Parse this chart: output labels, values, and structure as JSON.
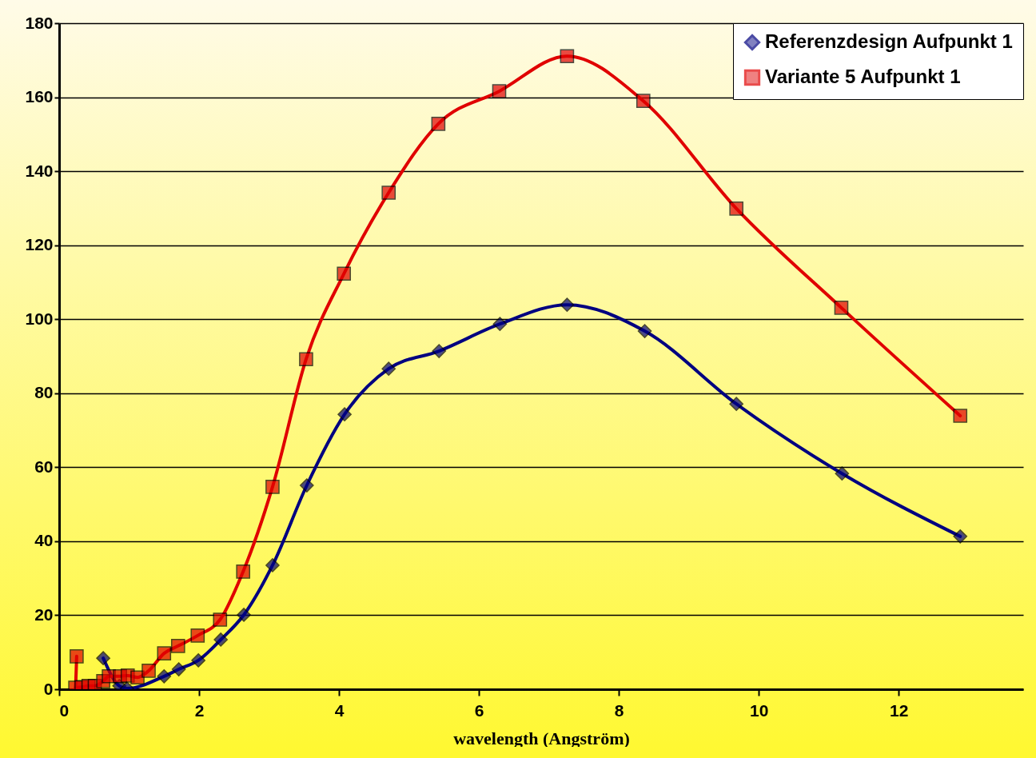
{
  "chart_data": {
    "type": "line",
    "xlabel": "wavelength (Angström)",
    "xlim": [
      0,
      13.78
    ],
    "xticks": [
      0,
      2,
      4,
      6,
      8,
      10,
      12
    ],
    "ylim": [
      0,
      180
    ],
    "yticks": [
      0,
      20,
      40,
      60,
      80,
      100,
      120,
      140,
      160,
      180
    ],
    "grid": "y",
    "legend": "top right",
    "line_style": "solid",
    "series": [
      {
        "name": "Referenzdesign Aufpunkt 1",
        "color": "#000080",
        "marker": "diamond",
        "x": [
          0.63,
          0.86,
          0.97,
          1.5,
          1.71,
          1.99,
          2.31,
          2.64,
          3.05,
          3.54,
          4.08,
          4.71,
          5.43,
          6.3,
          7.26,
          8.37,
          9.68,
          11.19,
          12.88
        ],
        "values": [
          8.4,
          0.9,
          0.2,
          3.5,
          5.4,
          7.8,
          13.4,
          20.1,
          33.5,
          55.1,
          74.3,
          86.6,
          91.4,
          98.7,
          103.9,
          96.8,
          77.1,
          58.3,
          41.3
        ]
      },
      {
        "name": "Variante 5 Aufpunkt 1",
        "color": "#e00000",
        "marker": "square",
        "x": [
          0.25,
          0.23,
          0.32,
          0.42,
          0.51,
          0.63,
          0.71,
          0.87,
          0.98,
          1.12,
          1.28,
          1.5,
          1.7,
          1.98,
          2.3,
          2.63,
          3.05,
          3.53,
          4.07,
          4.71,
          5.42,
          6.29,
          7.26,
          8.35,
          9.68,
          11.18,
          12.88
        ],
        "values": [
          8.9,
          0.4,
          0.6,
          0.9,
          0.9,
          2.2,
          3.5,
          3.5,
          3.7,
          3.2,
          5,
          9.7,
          11.7,
          14.5,
          18.8,
          31.8,
          54.7,
          89.2,
          112.3,
          134.2,
          152.8,
          161.6,
          171.1,
          159,
          129.9,
          103.1,
          73.9
        ]
      }
    ]
  }
}
